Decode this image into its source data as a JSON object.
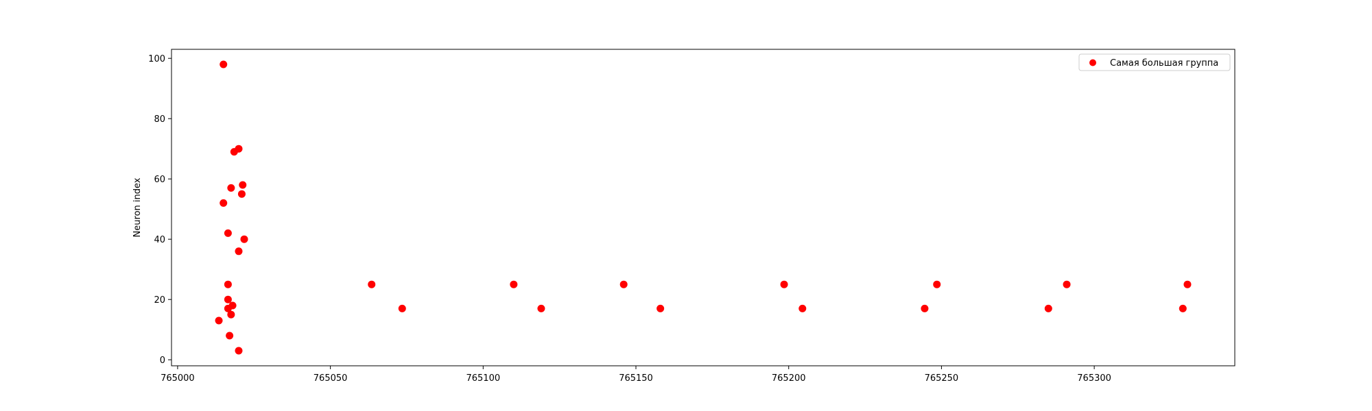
{
  "chart_data": {
    "type": "scatter",
    "title": "",
    "xlabel": "",
    "ylabel": "Neuron index",
    "xlim": [
      764998,
      765346
    ],
    "ylim": [
      -2,
      103
    ],
    "xticks": [
      765000,
      765050,
      765100,
      765150,
      765200,
      765250,
      765300
    ],
    "yticks": [
      0,
      20,
      40,
      60,
      80,
      100
    ],
    "grid": false,
    "legend_position": "top-right",
    "series": [
      {
        "name": "Самая большая группа",
        "color": "#ff0000",
        "x": [
          765013.5,
          765015,
          765015,
          765016.5,
          765016.5,
          765016.5,
          765016.5,
          765017,
          765017.5,
          765017.5,
          765018,
          765018.5,
          765020,
          765020,
          765020,
          765021,
          765021.3,
          765021.8,
          765063.5,
          765073.5,
          765110,
          765119,
          765146,
          765158,
          765198.5,
          765204.5,
          765244.5,
          765248.5,
          765285,
          765291,
          765329,
          765330.5
        ],
        "y": [
          13,
          98,
          52,
          42,
          25,
          20,
          17,
          8,
          57,
          15,
          18,
          69,
          70,
          36,
          3,
          55,
          58,
          40,
          25,
          17,
          25,
          17,
          25,
          17,
          25,
          17,
          17,
          25,
          17,
          25,
          17,
          25
        ]
      }
    ]
  }
}
